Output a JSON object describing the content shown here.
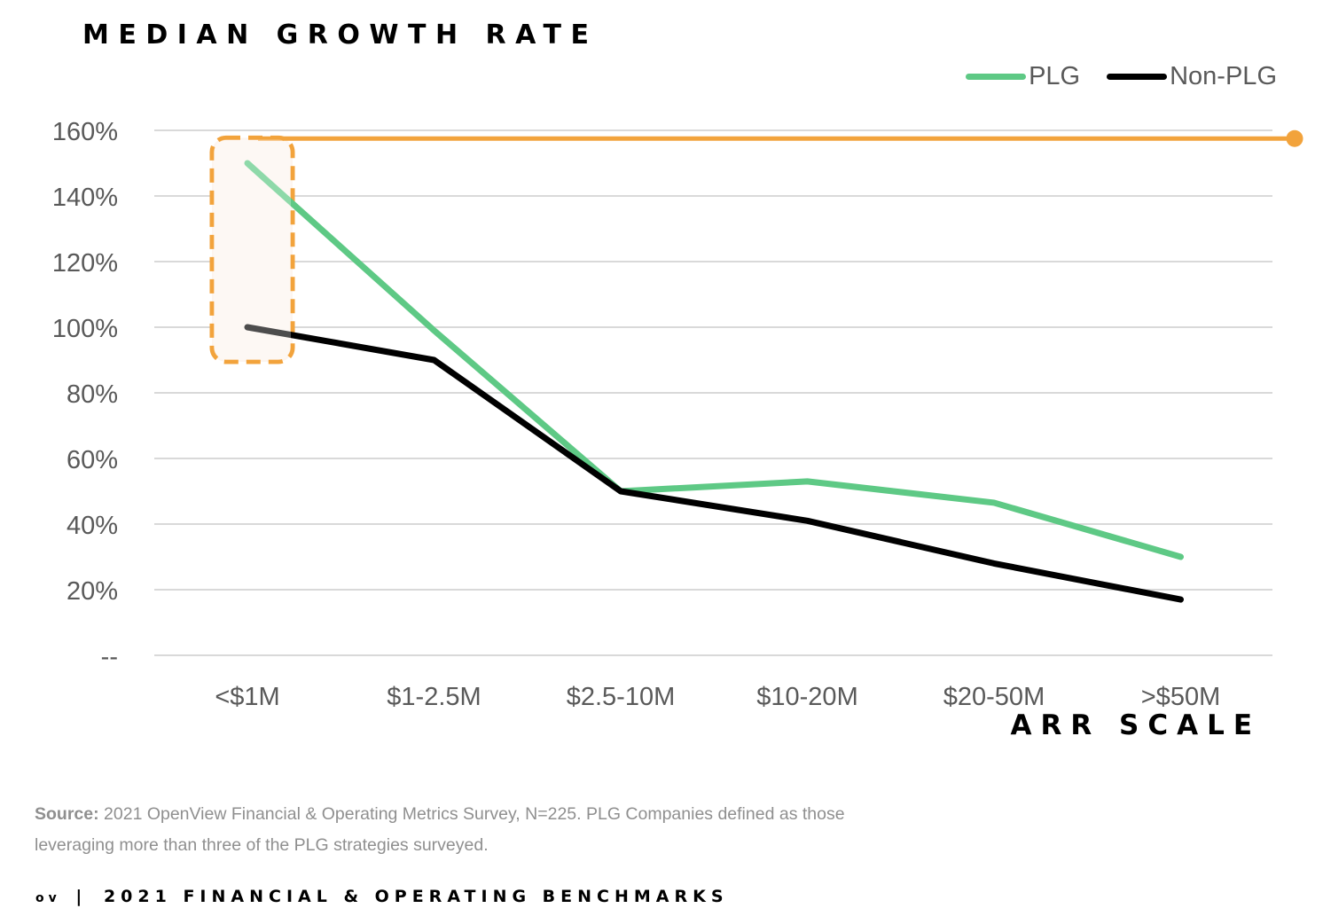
{
  "header": {
    "title": "MEDIAN GROWTH RATE"
  },
  "legend": {
    "items": [
      {
        "label": "PLG",
        "color": "#5ec985"
      },
      {
        "label": "Non-PLG",
        "color": "#000000"
      }
    ]
  },
  "colors": {
    "plg": "#5ec985",
    "non_plg": "#000000",
    "highlight": "#f2a33c",
    "highlight_fill": "#fdf5ef",
    "grid": "#d9d9d9",
    "tick_text": "#595959"
  },
  "chart_data": {
    "type": "line",
    "title": "MEDIAN GROWTH RATE",
    "xlabel": "ARR SCALE",
    "ylabel": "",
    "categories": [
      "<$1M",
      "$1-2.5M",
      "$2.5-10M",
      "$10-20M",
      "$20-50M",
      ">$50M"
    ],
    "series": [
      {
        "name": "PLG",
        "values": [
          150,
          99,
          50,
          53,
          46.5,
          30
        ]
      },
      {
        "name": "Non-PLG",
        "values": [
          100,
          90,
          50,
          41,
          28,
          17
        ]
      }
    ],
    "ylim": [
      0,
      160
    ],
    "yticks": [
      0,
      20,
      40,
      60,
      80,
      100,
      120,
      140,
      160
    ],
    "ytick_labels": [
      "--",
      "20%",
      "40%",
      "60%",
      "80%",
      "100%",
      "120%",
      "140%",
      "160%"
    ],
    "grid": true,
    "legend_position": "top-right",
    "annotations": [
      {
        "type": "highlight-box",
        "category": "<$1M",
        "range": [
          90,
          158
        ]
      },
      {
        "type": "reference-line",
        "value": 157.5
      }
    ]
  },
  "axis": {
    "x_title": "ARR SCALE"
  },
  "source": {
    "label": "Source:",
    "text": "2021 OpenView Financial & Operating Metrics Survey, N=225. PLG Companies defined as those leveraging more than three of the PLG strategies surveyed."
  },
  "footer": {
    "logo": "ov",
    "separator": "|",
    "text": "2021 FINANCIAL & OPERATING BENCHMARKS"
  }
}
